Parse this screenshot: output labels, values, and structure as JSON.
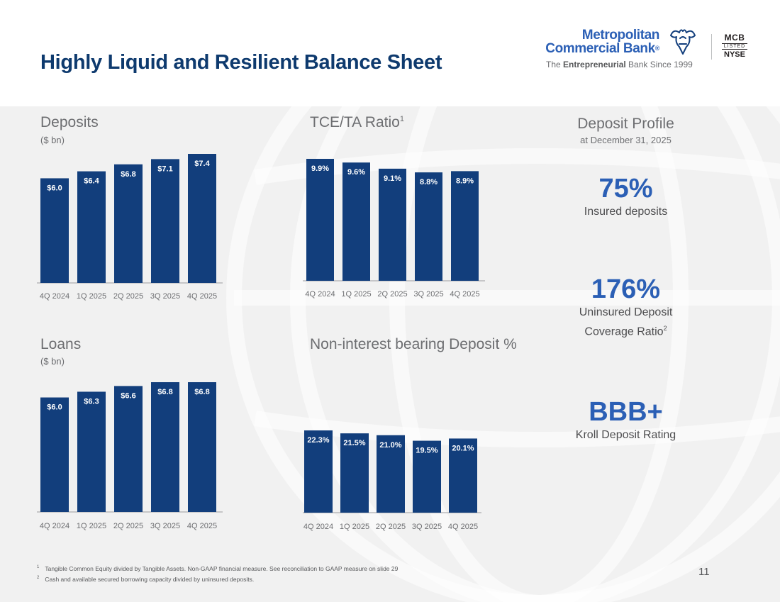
{
  "page": {
    "title": "Highly Liquid and Resilient Balance Sheet",
    "page_number": "11"
  },
  "logo": {
    "line1": "Metropolitan",
    "line2": "Commercial Bank",
    "registered": "®",
    "tagline_pre": "The ",
    "tagline_bold": "Entrepreneurial",
    "tagline_post": " Bank Since 1999",
    "ticker": "MCB",
    "listed": "LISTED",
    "exchange": "NYSE"
  },
  "sections": {
    "deposits_title": "Deposits",
    "deposits_sub": "($ bn)",
    "tce_title": "TCE/TA Ratio",
    "tce_sup": "1",
    "loans_title": "Loans",
    "loans_sub": "($ bn)",
    "nib_title": "Non-interest bearing Deposit %",
    "profile_title": "Deposit Profile",
    "profile_sub": "at December 31, 2025"
  },
  "deposit_profile": {
    "insured_value": "75%",
    "insured_label": "Insured deposits",
    "coverage_value": "176%",
    "coverage_label1": "Uninsured Deposit",
    "coverage_label2": "Coverage Ratio",
    "coverage_sup": "2",
    "rating_value": "BBB+",
    "rating_label": "Kroll Deposit Rating"
  },
  "footnotes": {
    "n1_mark": "1",
    "n1": "Tangible Common Equity divided by Tangible Assets. Non-GAAP financial measure. See reconciliation to GAAP measure on slide 29",
    "n2_mark": "2",
    "n2": "Cash and available secured borrowing capacity divided by uninsured deposits."
  },
  "colors": {
    "bar": "#123e7c",
    "accent": "#2b5fb5",
    "title": "#0e3a6e"
  },
  "chart_data": [
    {
      "id": "deposits",
      "type": "bar",
      "title": "Deposits",
      "ylabel": "($ bn)",
      "categories": [
        "4Q 2024",
        "1Q 2025",
        "2Q 2025",
        "3Q 2025",
        "4Q 2025"
      ],
      "values": [
        6.0,
        6.4,
        6.8,
        7.1,
        7.4
      ],
      "labels": [
        "$6.0",
        "$6.4",
        "$6.8",
        "$7.1",
        "$7.4"
      ],
      "ylim": [
        0,
        7.4
      ]
    },
    {
      "id": "tce",
      "type": "bar",
      "title": "TCE/TA Ratio",
      "categories": [
        "4Q 2024",
        "1Q 2025",
        "2Q 2025",
        "3Q 2025",
        "4Q 2025"
      ],
      "values": [
        9.9,
        9.6,
        9.1,
        8.8,
        8.9
      ],
      "labels": [
        "9.9%",
        "9.6%",
        "9.1%",
        "8.8%",
        "8.9%"
      ],
      "ylim": [
        0,
        9.9
      ]
    },
    {
      "id": "loans",
      "type": "bar",
      "title": "Loans",
      "ylabel": "($ bn)",
      "categories": [
        "4Q 2024",
        "1Q 2025",
        "2Q 2025",
        "3Q 2025",
        "4Q 2025"
      ],
      "values": [
        6.0,
        6.3,
        6.6,
        6.8,
        6.8
      ],
      "labels": [
        "$6.0",
        "$6.3",
        "$6.6",
        "$6.8",
        "$6.8"
      ],
      "ylim": [
        0,
        6.8
      ]
    },
    {
      "id": "nib",
      "type": "bar",
      "title": "Non-interest bearing Deposit %",
      "categories": [
        "4Q 2024",
        "1Q 2025",
        "2Q 2025",
        "3Q 2025",
        "4Q 2025"
      ],
      "values": [
        22.3,
        21.5,
        21.0,
        19.5,
        20.1
      ],
      "labels": [
        "22.3%",
        "21.5%",
        "21.0%",
        "19.5%",
        "20.1%"
      ],
      "ylim": [
        0,
        22.3
      ]
    }
  ]
}
